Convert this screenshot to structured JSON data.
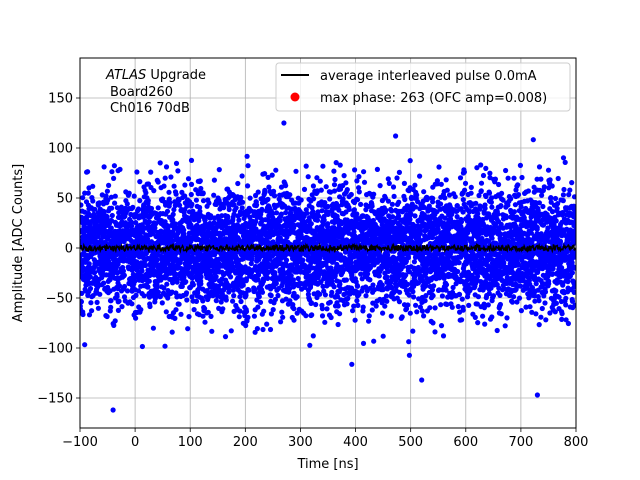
{
  "chart_data": {
    "type": "scatter",
    "xlabel": "Time [ns]",
    "ylabel": "Amplitude [ADC Counts]",
    "xlim": [
      -100,
      800
    ],
    "ylim": [
      -180,
      190
    ],
    "xticks": [
      -100,
      0,
      100,
      200,
      300,
      400,
      500,
      600,
      700,
      800
    ],
    "yticks": [
      -150,
      -100,
      -50,
      0,
      50,
      100,
      150
    ],
    "xtick_labels": [
      "−100",
      "0",
      "100",
      "200",
      "300",
      "400",
      "500",
      "600",
      "700",
      "800"
    ],
    "ytick_labels": [
      "−150",
      "−100",
      "−50",
      "0",
      "50",
      "100",
      "150"
    ],
    "grid": true,
    "legend_position": "top-right",
    "annotation": {
      "line1_italic": "ATLAS",
      "line1_rest": " Upgrade",
      "line2": "Board260",
      "line3": "Ch016 70dB"
    },
    "series": [
      {
        "name": "average interleaved pulse 0.0mA",
        "kind": "line",
        "color": "#000000",
        "x_range": [
          -100,
          800
        ],
        "y_baseline": 0,
        "y_noise_amplitude": 3
      },
      {
        "name": "max phase: 263 (OFC amp=0.008)",
        "kind": "scatter",
        "color": "#0000ff",
        "x_range": [
          -100,
          800
        ],
        "y_center": 0,
        "y_std_dev": 30,
        "y_extremes": [
          -162,
          125
        ]
      }
    ],
    "legend_marker_colors": [
      "#000000",
      "#ff0000"
    ]
  }
}
